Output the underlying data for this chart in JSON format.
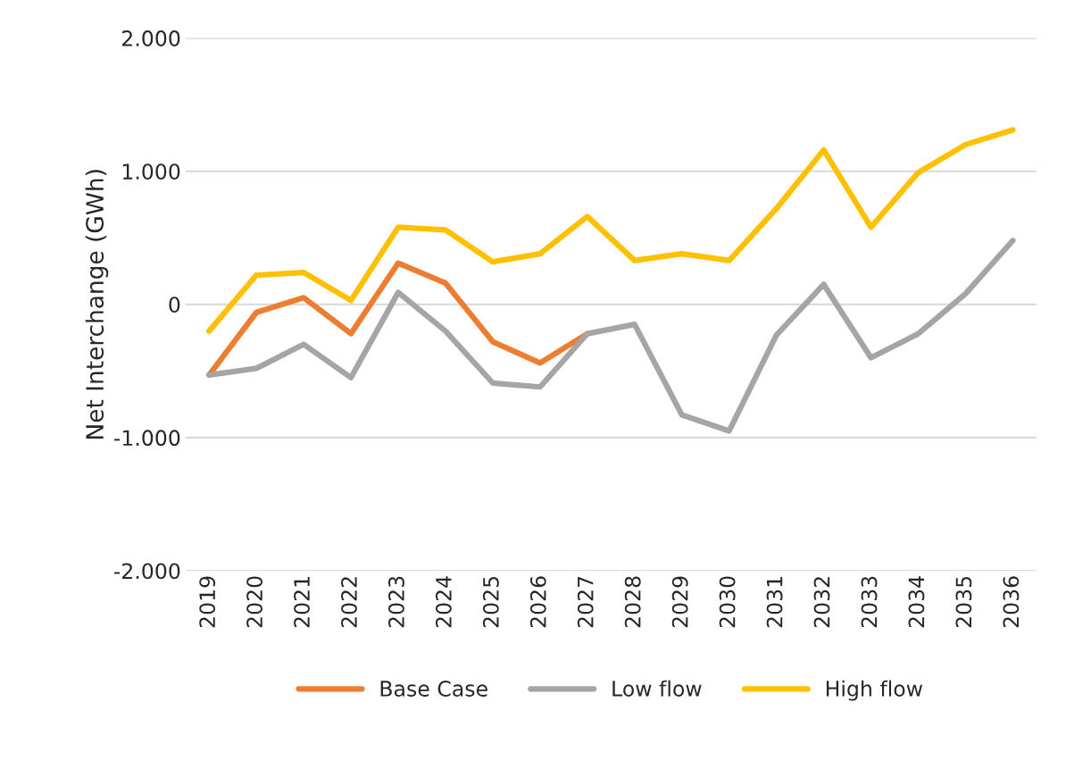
{
  "chart_data": {
    "type": "line",
    "ylabel": "Net Interchange (GWh)",
    "categories": [
      "2019",
      "2020",
      "2021",
      "2022",
      "2023",
      "2024",
      "2025",
      "2026",
      "2027",
      "2028",
      "2029",
      "2030",
      "2031",
      "2032",
      "2033",
      "2034",
      "2035",
      "2036"
    ],
    "series": [
      {
        "name": "Base Case",
        "color": "#ed7d31",
        "values": [
          -530,
          -60,
          50,
          -220,
          310,
          160,
          -280,
          -440,
          -220,
          null,
          null,
          null,
          null,
          null,
          null,
          null,
          null,
          null
        ]
      },
      {
        "name": "Low flow",
        "color": "#a5a5a5",
        "values": [
          -530,
          -480,
          -300,
          -550,
          90,
          -200,
          -590,
          -620,
          -220,
          -150,
          -830,
          -950,
          -230,
          150,
          -400,
          -220,
          80,
          480
        ]
      },
      {
        "name": "High flow",
        "color": "#ffc000",
        "values": [
          -200,
          220,
          240,
          30,
          580,
          560,
          320,
          380,
          660,
          330,
          380,
          330,
          720,
          1160,
          580,
          990,
          1200,
          1310
        ]
      }
    ],
    "ylim": [
      -2000,
      2000
    ],
    "yticks": [
      {
        "value": -2000,
        "label": "-2.000"
      },
      {
        "value": -1000,
        "label": "-1.000"
      },
      0,
      {
        "value": 1000,
        "label": "1.000"
      },
      {
        "value": 2000,
        "label": "2.000"
      }
    ],
    "grid": "y",
    "legend": "bottom"
  }
}
